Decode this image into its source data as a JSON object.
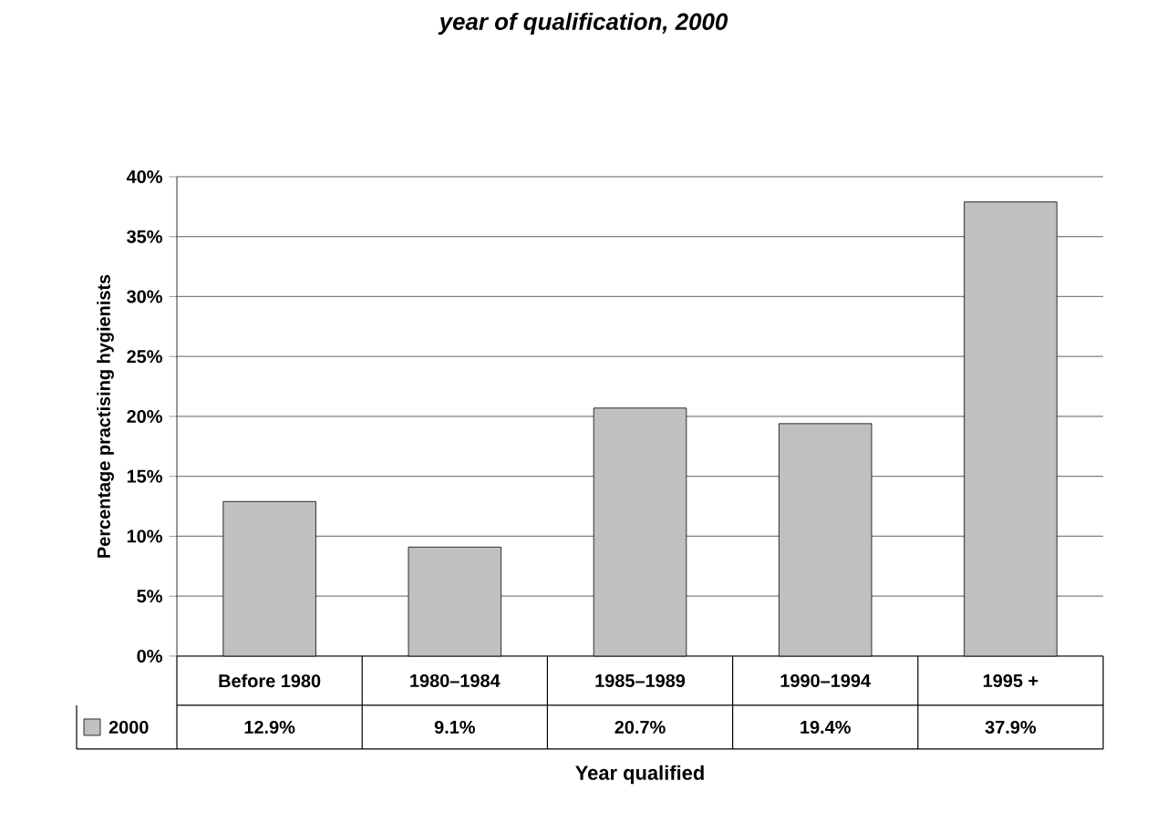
{
  "chart_data": {
    "type": "bar",
    "title": "year of qualification, 2000",
    "xlabel": "Year qualified",
    "ylabel": "Percentage practising hygienists",
    "categories": [
      "Before 1980",
      "1980–1984",
      "1985–1989",
      "1990–1994",
      "1995 +"
    ],
    "series": [
      {
        "name": "2000",
        "color": "#c0c0c0",
        "values": [
          12.9,
          9.1,
          20.7,
          19.4,
          37.9
        ],
        "value_labels": [
          "12.9%",
          "9.1%",
          "20.7%",
          "19.4%",
          "37.9%"
        ]
      }
    ],
    "ylim": [
      0,
      40
    ],
    "yticks": [
      {
        "value": 0,
        "label": "0%"
      },
      {
        "value": 5,
        "label": "5%"
      },
      {
        "value": 10,
        "label": "10%"
      },
      {
        "value": 15,
        "label": "15%"
      },
      {
        "value": 20,
        "label": "20%"
      },
      {
        "value": 25,
        "label": "25%"
      },
      {
        "value": 30,
        "label": "30%"
      },
      {
        "value": 35,
        "label": "35%"
      },
      {
        "value": 40,
        "label": "40%"
      }
    ],
    "grid": "y"
  }
}
